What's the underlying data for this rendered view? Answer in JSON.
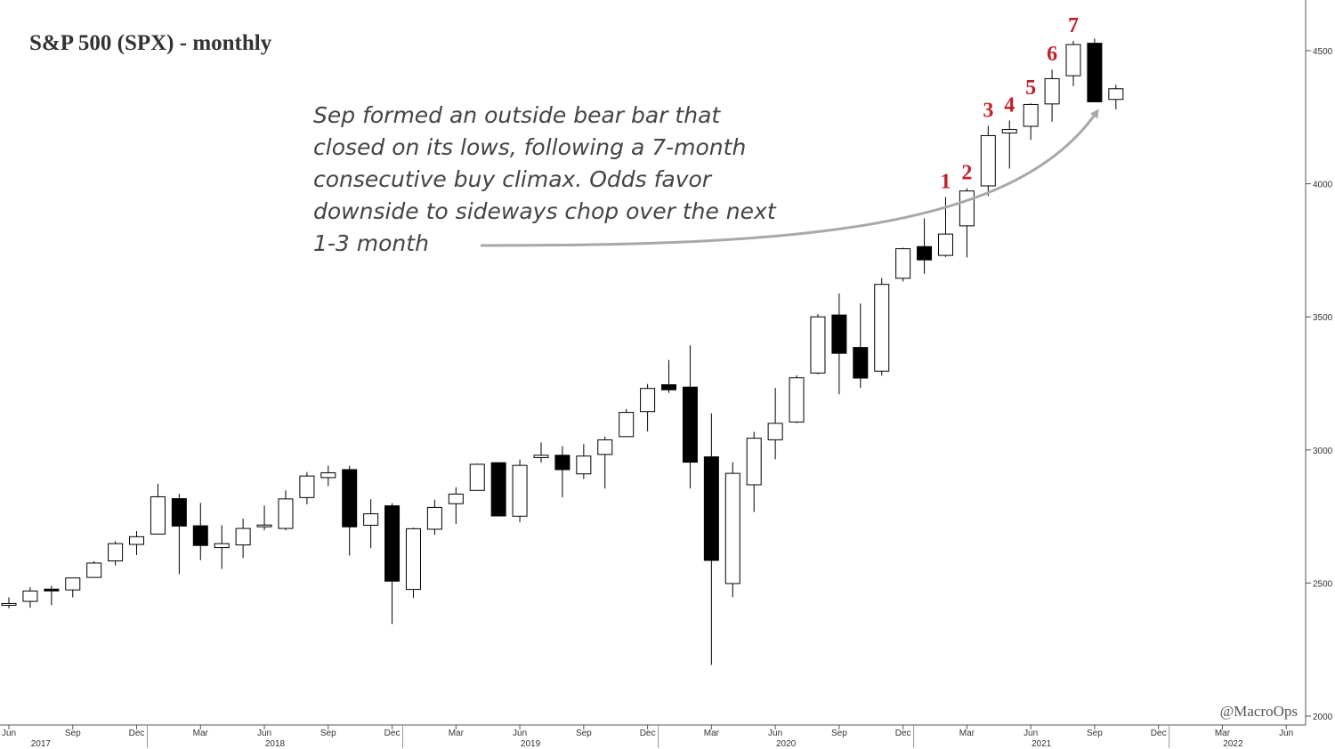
{
  "chart_data": {
    "type": "candlestick",
    "title": "S&P 500 (SPX) - monthly",
    "credit": "@MacroOps",
    "y_axis": {
      "min": 2000,
      "max": 4500,
      "ticks": [
        2000,
        2500,
        3000,
        3500,
        4000,
        4500
      ],
      "side": "right"
    },
    "x_axis": {
      "start": "2017-06",
      "end": "2022-06",
      "month_ticks": [
        {
          "label": "Jun",
          "date": "2017-06"
        },
        {
          "label": "Sep",
          "date": "2017-09"
        },
        {
          "label": "Dec",
          "date": "2017-12"
        },
        {
          "label": "Mar",
          "date": "2018-03"
        },
        {
          "label": "Jun",
          "date": "2018-06"
        },
        {
          "label": "Sep",
          "date": "2018-09"
        },
        {
          "label": "Dec",
          "date": "2018-12"
        },
        {
          "label": "Mar",
          "date": "2019-03"
        },
        {
          "label": "Jun",
          "date": "2019-06"
        },
        {
          "label": "Sep",
          "date": "2019-09"
        },
        {
          "label": "Dec",
          "date": "2019-12"
        },
        {
          "label": "Mar",
          "date": "2020-03"
        },
        {
          "label": "Jun",
          "date": "2020-06"
        },
        {
          "label": "Sep",
          "date": "2020-09"
        },
        {
          "label": "Dec",
          "date": "2020-12"
        },
        {
          "label": "Mar",
          "date": "2021-03"
        },
        {
          "label": "Jun",
          "date": "2021-06"
        },
        {
          "label": "Sep",
          "date": "2021-09"
        },
        {
          "label": "Dec",
          "date": "2021-12"
        },
        {
          "label": "Mar",
          "date": "2022-03"
        },
        {
          "label": "Jun",
          "date": "2022-06"
        }
      ],
      "year_labels": [
        {
          "label": "2017",
          "date": "2017-08"
        },
        {
          "label": "2018",
          "date": "2018-07"
        },
        {
          "label": "2019",
          "date": "2019-07"
        },
        {
          "label": "2020",
          "date": "2020-07"
        },
        {
          "label": "2021",
          "date": "2021-07"
        },
        {
          "label": "2022",
          "date": "2022-04"
        }
      ]
    },
    "candles": [
      {
        "date": "2017-06",
        "open": 2418,
        "high": 2446,
        "low": 2405,
        "close": 2423
      },
      {
        "date": "2017-07",
        "open": 2431,
        "high": 2484,
        "low": 2407,
        "close": 2470
      },
      {
        "date": "2017-08",
        "open": 2477,
        "high": 2490,
        "low": 2417,
        "close": 2471
      },
      {
        "date": "2017-09",
        "open": 2474,
        "high": 2519,
        "low": 2446,
        "close": 2519
      },
      {
        "date": "2017-10",
        "open": 2521,
        "high": 2582,
        "low": 2520,
        "close": 2575
      },
      {
        "date": "2017-11",
        "open": 2583,
        "high": 2657,
        "low": 2566,
        "close": 2648
      },
      {
        "date": "2017-12",
        "open": 2645,
        "high": 2695,
        "low": 2605,
        "close": 2674
      },
      {
        "date": "2018-01",
        "open": 2684,
        "high": 2873,
        "low": 2682,
        "close": 2824
      },
      {
        "date": "2018-02",
        "open": 2817,
        "high": 2835,
        "low": 2533,
        "close": 2714
      },
      {
        "date": "2018-03",
        "open": 2715,
        "high": 2801,
        "low": 2586,
        "close": 2641
      },
      {
        "date": "2018-04",
        "open": 2633,
        "high": 2717,
        "low": 2553,
        "close": 2648
      },
      {
        "date": "2018-05",
        "open": 2643,
        "high": 2742,
        "low": 2594,
        "close": 2705
      },
      {
        "date": "2018-06",
        "open": 2718,
        "high": 2791,
        "low": 2698,
        "close": 2718
      },
      {
        "date": "2018-07",
        "open": 2705,
        "high": 2848,
        "low": 2698,
        "close": 2816
      },
      {
        "date": "2018-08",
        "open": 2821,
        "high": 2917,
        "low": 2796,
        "close": 2902
      },
      {
        "date": "2018-09",
        "open": 2896,
        "high": 2941,
        "low": 2864,
        "close": 2914
      },
      {
        "date": "2018-10",
        "open": 2926,
        "high": 2940,
        "low": 2603,
        "close": 2711
      },
      {
        "date": "2018-11",
        "open": 2717,
        "high": 2815,
        "low": 2631,
        "close": 2760
      },
      {
        "date": "2018-12",
        "open": 2790,
        "high": 2800,
        "low": 2346,
        "close": 2507
      },
      {
        "date": "2019-01",
        "open": 2476,
        "high": 2708,
        "low": 2444,
        "close": 2704
      },
      {
        "date": "2019-02",
        "open": 2702,
        "high": 2813,
        "low": 2681,
        "close": 2784
      },
      {
        "date": "2019-03",
        "open": 2798,
        "high": 2860,
        "low": 2722,
        "close": 2834
      },
      {
        "date": "2019-04",
        "open": 2848,
        "high": 2949,
        "low": 2848,
        "close": 2946
      },
      {
        "date": "2019-05",
        "open": 2952,
        "high": 2954,
        "low": 2750,
        "close": 2752
      },
      {
        "date": "2019-06",
        "open": 2751,
        "high": 2964,
        "low": 2728,
        "close": 2942
      },
      {
        "date": "2019-07",
        "open": 2971,
        "high": 3028,
        "low": 2952,
        "close": 2980
      },
      {
        "date": "2019-08",
        "open": 2980,
        "high": 3014,
        "low": 2822,
        "close": 2926
      },
      {
        "date": "2019-09",
        "open": 2910,
        "high": 3022,
        "low": 2891,
        "close": 2977
      },
      {
        "date": "2019-10",
        "open": 2983,
        "high": 3050,
        "low": 2855,
        "close": 3038
      },
      {
        "date": "2019-11",
        "open": 3050,
        "high": 3154,
        "low": 3050,
        "close": 3141
      },
      {
        "date": "2019-12",
        "open": 3144,
        "high": 3248,
        "low": 3070,
        "close": 3231
      },
      {
        "date": "2020-01",
        "open": 3245,
        "high": 3338,
        "low": 3214,
        "close": 3226
      },
      {
        "date": "2020-02",
        "open": 3236,
        "high": 3393,
        "low": 2855,
        "close": 2954
      },
      {
        "date": "2020-03",
        "open": 2974,
        "high": 3137,
        "low": 2192,
        "close": 2585
      },
      {
        "date": "2020-04",
        "open": 2498,
        "high": 2954,
        "low": 2447,
        "close": 2912
      },
      {
        "date": "2020-05",
        "open": 2869,
        "high": 3068,
        "low": 2767,
        "close": 3044
      },
      {
        "date": "2020-06",
        "open": 3038,
        "high": 3233,
        "low": 2965,
        "close": 3100
      },
      {
        "date": "2020-07",
        "open": 3105,
        "high": 3280,
        "low": 3101,
        "close": 3271
      },
      {
        "date": "2020-08",
        "open": 3289,
        "high": 3511,
        "low": 3284,
        "close": 3500
      },
      {
        "date": "2020-09",
        "open": 3507,
        "high": 3588,
        "low": 3209,
        "close": 3363
      },
      {
        "date": "2020-10",
        "open": 3385,
        "high": 3550,
        "low": 3233,
        "close": 3270
      },
      {
        "date": "2020-11",
        "open": 3296,
        "high": 3646,
        "low": 3279,
        "close": 3622
      },
      {
        "date": "2020-12",
        "open": 3645,
        "high": 3760,
        "low": 3633,
        "close": 3756
      },
      {
        "date": "2021-01",
        "open": 3764,
        "high": 3870,
        "low": 3662,
        "close": 3714
      },
      {
        "date": "2021-02",
        "open": 3731,
        "high": 3950,
        "low": 3725,
        "close": 3811
      },
      {
        "date": "2021-03",
        "open": 3842,
        "high": 3983,
        "low": 3723,
        "close": 3973
      },
      {
        "date": "2021-04",
        "open": 3992,
        "high": 4218,
        "low": 3954,
        "close": 4181
      },
      {
        "date": "2021-05",
        "open": 4191,
        "high": 4238,
        "low": 4057,
        "close": 4204
      },
      {
        "date": "2021-06",
        "open": 4216,
        "high": 4302,
        "low": 4165,
        "close": 4298
      },
      {
        "date": "2021-07",
        "open": 4300,
        "high": 4429,
        "low": 4233,
        "close": 4395
      },
      {
        "date": "2021-08",
        "open": 4406,
        "high": 4537,
        "low": 4367,
        "close": 4523
      },
      {
        "date": "2021-09",
        "open": 4528,
        "high": 4546,
        "low": 4306,
        "close": 4308
      },
      {
        "date": "2021-10",
        "open": 4317,
        "high": 4372,
        "low": 4279,
        "close": 4357
      }
    ],
    "count_labels": [
      {
        "text": "1",
        "date": "2021-02"
      },
      {
        "text": "2",
        "date": "2021-03"
      },
      {
        "text": "3",
        "date": "2021-04"
      },
      {
        "text": "4",
        "date": "2021-05"
      },
      {
        "text": "5",
        "date": "2021-06"
      },
      {
        "text": "6",
        "date": "2021-07"
      },
      {
        "text": "7",
        "date": "2021-08"
      }
    ],
    "annotation": {
      "lines": [
        "Sep formed an outside bear bar that",
        "closed on its lows, following a 7-month",
        "consecutive buy climax. Odds favor",
        "downside to sideways chop over the next",
        "1-3 month"
      ],
      "arrow_target_date": "2021-09"
    },
    "colors": {
      "up_fill": "#ffffff",
      "down_fill": "#000000",
      "candle_stroke": "#000000",
      "label_red": "#c0202a",
      "arrow": "#a8a8a8",
      "axis": "#555555"
    }
  }
}
